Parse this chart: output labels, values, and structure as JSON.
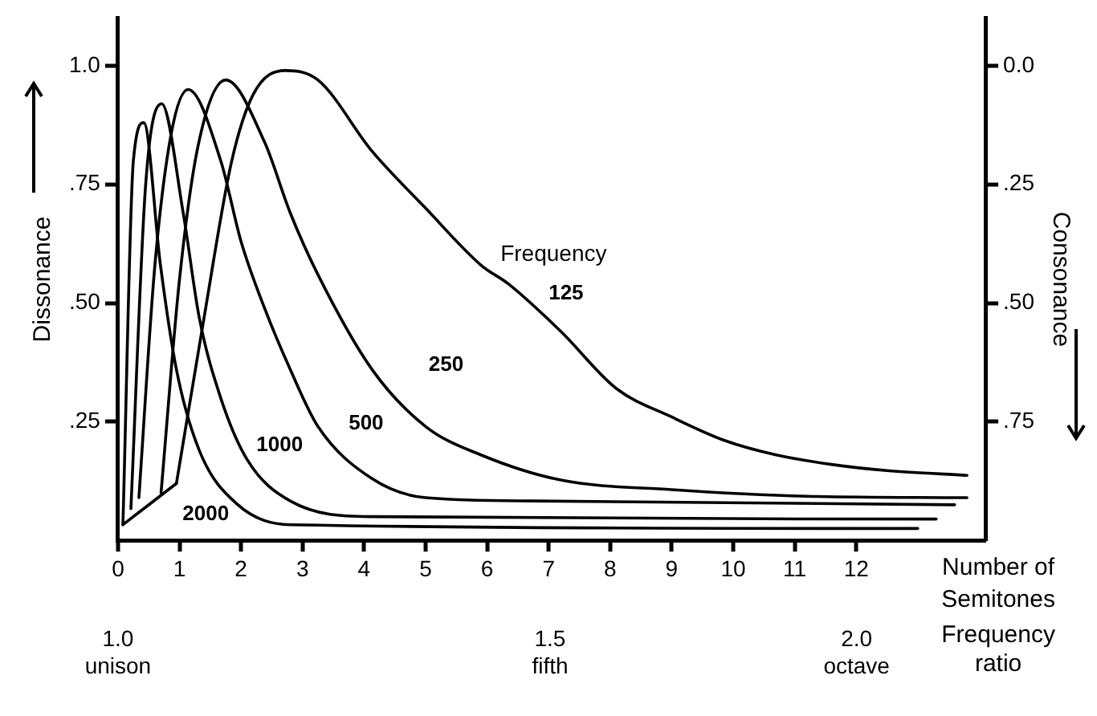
{
  "chart_data": {
    "type": "line",
    "legend_title": "Frequency",
    "xlabel": "Number of Semitones",
    "x2label": "Frequency ratio",
    "ylabel": "Dissonance",
    "y2label": "Consonance",
    "marker": "none",
    "line_style": "solid",
    "xlim": [
      0,
      14.1
    ],
    "xticks": [
      0,
      1,
      2,
      3,
      4,
      5,
      6,
      7,
      8,
      9,
      10,
      11,
      12
    ],
    "log": "x2",
    "x2lim": [
      1,
      2.257
    ],
    "x2ticks": [
      {
        "value": 1,
        "label": "1.0\nunison"
      },
      {
        "value": 1.5,
        "label": "1.5\nfifth"
      },
      {
        "value": 2,
        "label": "2.0\noctave"
      }
    ],
    "ylim": [
      0,
      1.1
    ],
    "yticks": [
      {
        "value": 0.25,
        "label": ".25"
      },
      {
        "value": 0.5,
        "label": ".50"
      },
      {
        "value": 0.75,
        "label": ".75"
      },
      {
        "value": 1,
        "label": "1.0"
      }
    ],
    "y2lim": [
      1,
      -0.1
    ],
    "y2ticks": [
      {
        "value": 0,
        "label": "0.0"
      },
      {
        "value": 0.25,
        "label": ".25"
      },
      {
        "value": 0.5,
        "label": ".50"
      },
      {
        "value": 0.75,
        "label": ".75"
      }
    ],
    "series": [
      {
        "name": "125",
        "color": "#000000",
        "x": [
          0.95,
          1.4,
          1.85,
          2.2,
          2.72,
          3.25,
          4.13,
          5.0,
          5.9,
          6.35,
          7.2,
          8.1,
          9.0,
          9.87,
          10.7,
          11.6,
          12.5,
          13.8
        ],
        "values": [
          0.12,
          0.47,
          0.8,
          0.94,
          0.99,
          0.97,
          0.82,
          0.7,
          0.58,
          0.54,
          0.44,
          0.32,
          0.26,
          0.21,
          0.18,
          0.16,
          0.147,
          0.137
        ]
      },
      {
        "name": "250",
        "color": "#000000",
        "x": [
          0.7,
          1.0,
          1.3,
          1.75,
          2.38,
          2.8,
          3.25,
          4.13,
          5.0,
          5.9,
          7.2,
          9.0,
          11.2,
          13.8
        ],
        "values": [
          0.1,
          0.55,
          0.83,
          0.97,
          0.84,
          0.69,
          0.56,
          0.36,
          0.24,
          0.18,
          0.127,
          0.107,
          0.093,
          0.09
        ]
      },
      {
        "name": "500",
        "color": "#000000",
        "x": [
          0.34,
          0.6,
          0.87,
          1.14,
          1.67,
          2.0,
          2.38,
          2.8,
          3.25,
          4.13,
          5.0,
          6.8,
          13.6
        ],
        "values": [
          0.09,
          0.58,
          0.86,
          0.95,
          0.8,
          0.63,
          0.49,
          0.36,
          0.24,
          0.13,
          0.09,
          0.083,
          0.075
        ]
      },
      {
        "name": "1000",
        "color": "#000000",
        "x": [
          0.21,
          0.45,
          0.71,
          1.06,
          1.32,
          1.67,
          2.1,
          2.8,
          4.13,
          13.3
        ],
        "values": [
          0.067,
          0.75,
          0.92,
          0.69,
          0.47,
          0.3,
          0.17,
          0.083,
          0.05,
          0.045
        ]
      },
      {
        "name": "2000",
        "color": "#000000",
        "x": [
          0.08,
          0.25,
          0.42,
          0.69,
          0.95,
          1.32,
          1.93,
          2.8,
          13.0
        ],
        "values": [
          0.033,
          0.8,
          0.88,
          0.58,
          0.36,
          0.19,
          0.077,
          0.033,
          0.025
        ]
      },
      {
        "color": "#000000",
        "x": [
          0.08,
          0.95
        ],
        "values": [
          0.033,
          0.12
        ]
      }
    ]
  }
}
